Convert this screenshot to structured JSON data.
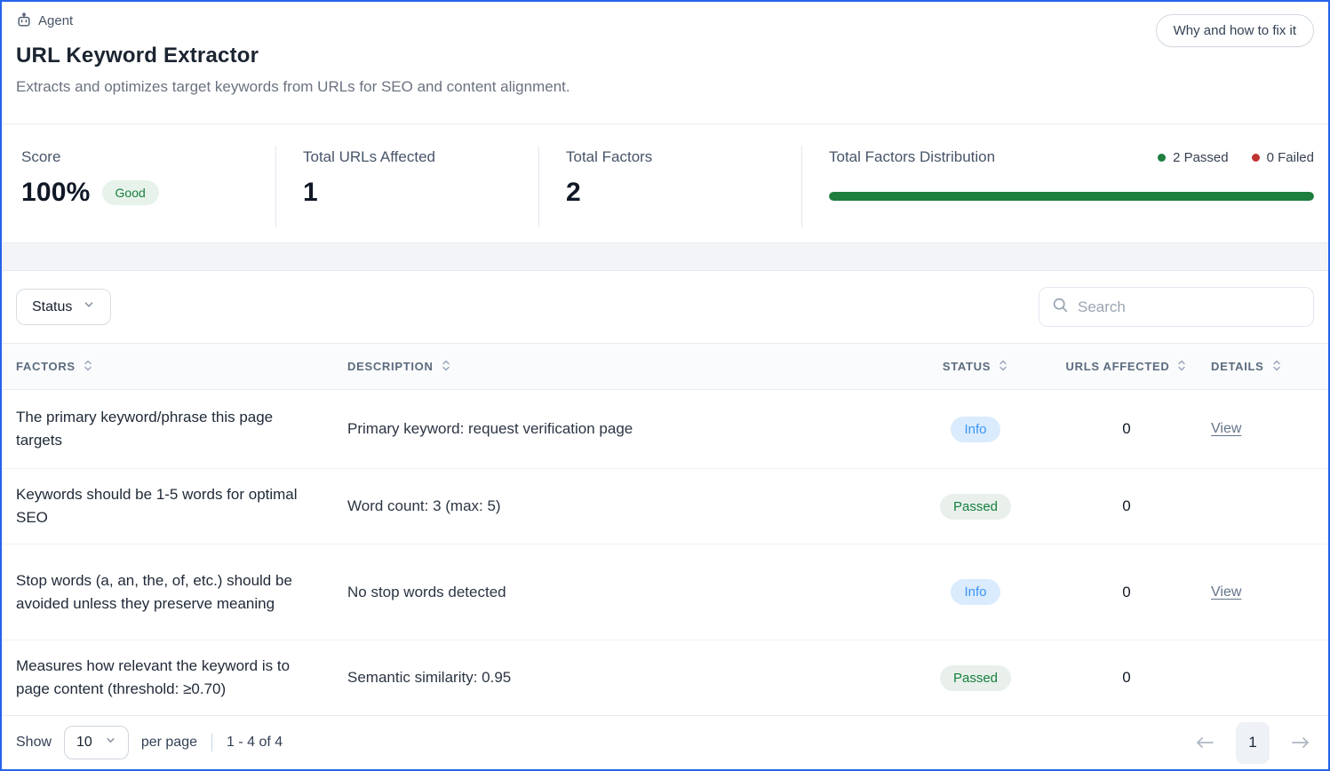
{
  "header": {
    "badge_label": "Agent",
    "title": "URL Keyword Extractor",
    "subtitle": "Extracts and optimizes target keywords from URLs for SEO and content alignment.",
    "action_button": "Why and how to fix it"
  },
  "stats": {
    "score": {
      "label": "Score",
      "value": "100%",
      "badge": "Good"
    },
    "total_urls": {
      "label": "Total URLs Affected",
      "value": "1"
    },
    "total_factors": {
      "label": "Total Factors",
      "value": "2"
    },
    "distribution": {
      "label": "Total Factors Distribution",
      "passed_legend": "2 Passed",
      "failed_legend": "0 Failed",
      "passed_count": 2,
      "failed_count": 0,
      "bar_percent_passed": 100
    }
  },
  "filters": {
    "status_dropdown_label": "Status",
    "search_placeholder": "Search"
  },
  "table": {
    "columns": [
      "Factors",
      "Description",
      "Status",
      "URLs Affected",
      "Details"
    ],
    "rows": [
      {
        "factor": "The primary keyword/phrase this page targets",
        "description": "Primary keyword: request verification page",
        "status": "Info",
        "urls_affected": "0",
        "details": "View"
      },
      {
        "factor": "Keywords should be 1-5 words for optimal SEO",
        "description": "Word count: 3 (max: 5)",
        "status": "Passed",
        "urls_affected": "0",
        "details": ""
      },
      {
        "factor": "Stop words (a, an, the, of, etc.) should be avoided unless they preserve meaning",
        "description": "No stop words detected",
        "status": "Info",
        "urls_affected": "0",
        "details": "View"
      },
      {
        "factor": "Measures how relevant the keyword is to page content (threshold: ≥0.70)",
        "description": "Semantic similarity: 0.95",
        "status": "Passed",
        "urls_affected": "0",
        "details": ""
      }
    ]
  },
  "pagination": {
    "show_label": "Show",
    "page_size": "10",
    "per_page_label": "per page",
    "range_label": "1 - 4 of 4",
    "current_page": "1"
  },
  "colors": {
    "accent_border": "#2563eb",
    "passed_green": "#1e7e3e",
    "failed_red": "#c13434",
    "info_blue": "#3b96f6",
    "badge_good_bg": "#e7f2eb"
  }
}
